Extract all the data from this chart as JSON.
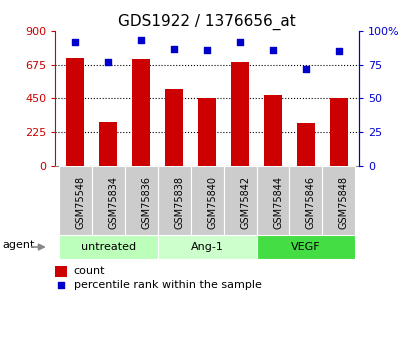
{
  "title": "GDS1922 / 1376656_at",
  "samples": [
    "GSM75548",
    "GSM75834",
    "GSM75836",
    "GSM75838",
    "GSM75840",
    "GSM75842",
    "GSM75844",
    "GSM75846",
    "GSM75848"
  ],
  "counts": [
    720,
    290,
    710,
    510,
    450,
    690,
    470,
    285,
    455
  ],
  "percentiles": [
    92,
    77,
    93,
    87,
    86,
    92,
    86,
    72,
    85
  ],
  "bar_color": "#cc0000",
  "dot_color": "#0000cc",
  "left_ylim": [
    0,
    900
  ],
  "right_ylim": [
    0,
    100
  ],
  "left_yticks": [
    0,
    225,
    450,
    675,
    900
  ],
  "right_yticks": [
    0,
    25,
    50,
    75,
    100
  ],
  "right_yticklabels": [
    "0",
    "25",
    "50",
    "75",
    "100%"
  ],
  "groups": [
    {
      "label": "untreated",
      "indices": [
        0,
        1,
        2
      ],
      "color": "#bbffbb"
    },
    {
      "label": "Ang-1",
      "indices": [
        3,
        4,
        5
      ],
      "color": "#ccffcc"
    },
    {
      "label": "VEGF",
      "indices": [
        6,
        7,
        8
      ],
      "color": "#44dd44"
    }
  ],
  "agent_label": "agent",
  "legend_count_label": "count",
  "legend_pct_label": "percentile rank within the sample",
  "grid_color": "#000000",
  "bg_color": "#ffffff",
  "sample_box_color": "#cccccc",
  "tick_label_color_left": "#cc0000",
  "tick_label_color_right": "#0000cc",
  "bar_width": 0.55,
  "title_fontsize": 11,
  "tick_fontsize": 8,
  "label_fontsize": 8,
  "sample_fontsize": 7
}
